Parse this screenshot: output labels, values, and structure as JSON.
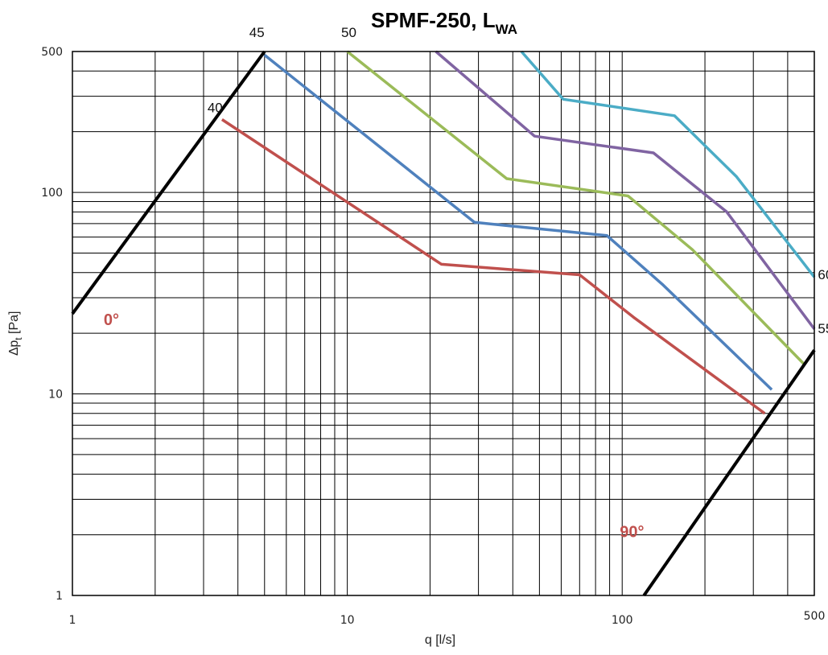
{
  "chart_data": {
    "type": "line",
    "title": "SPMF-250, L",
    "title_subscript": "WA",
    "xlabel": "q [l/s]",
    "ylabel_prefix": "∆p",
    "ylabel_subscript": "t",
    "ylabel_suffix": " [Pa]",
    "x_scale": "log",
    "y_scale": "log",
    "xlim": [
      1,
      500
    ],
    "ylim": [
      1,
      500
    ],
    "x_ticks": [
      {
        "value": 1,
        "label": "1"
      },
      {
        "value": 10,
        "label": "10"
      },
      {
        "value": 100,
        "label": "100"
      },
      {
        "value": 500,
        "label": "500"
      }
    ],
    "y_ticks": [
      {
        "value": 1,
        "label": "1"
      },
      {
        "value": 10,
        "label": "10"
      },
      {
        "value": 100,
        "label": "100"
      },
      {
        "value": 500,
        "label": "500"
      }
    ],
    "grid": true,
    "series": [
      {
        "name": "40",
        "color": "#C0504D",
        "points": [
          [
            3.5,
            230
          ],
          [
            22,
            44
          ],
          [
            70,
            39
          ],
          [
            110,
            24
          ],
          [
            330,
            8
          ]
        ]
      },
      {
        "name": "45",
        "color": "#4F81BD",
        "points": [
          [
            5,
            480
          ],
          [
            29,
            71
          ],
          [
            88,
            61
          ],
          [
            140,
            35
          ],
          [
            350,
            10.5
          ]
        ]
      },
      {
        "name": "50",
        "color": "#9BBB59",
        "points": [
          [
            10,
            500
          ],
          [
            38,
            117
          ],
          [
            105,
            96
          ],
          [
            180,
            52
          ],
          [
            460,
            14
          ]
        ]
      },
      {
        "name": "55",
        "color": "#8064A2",
        "points": [
          [
            21,
            500
          ],
          [
            48,
            190
          ],
          [
            130,
            157
          ],
          [
            240,
            80
          ],
          [
            500,
            21
          ]
        ]
      },
      {
        "name": "60",
        "color": "#4BACC6",
        "points": [
          [
            43,
            500
          ],
          [
            61,
            290
          ],
          [
            155,
            240
          ],
          [
            260,
            120
          ],
          [
            500,
            38
          ]
        ]
      },
      {
        "name": "0°",
        "color": "#000000",
        "points": [
          [
            1,
            25
          ],
          [
            5,
            500
          ]
        ]
      },
      {
        "name": "90°",
        "color": "#000000",
        "points": [
          [
            120,
            1
          ],
          [
            500,
            16.5
          ]
        ]
      }
    ],
    "annotations": [
      {
        "text": "40",
        "x": 3.1,
        "y": 250,
        "kind": "curve"
      },
      {
        "text": "45",
        "x": 4.4,
        "y": 590,
        "kind": "curve"
      },
      {
        "text": "50",
        "x": 9.5,
        "y": 590,
        "kind": "curve"
      },
      {
        "text": "55",
        "x": 515,
        "y": 20,
        "kind": "curve"
      },
      {
        "text": "60",
        "x": 515,
        "y": 37,
        "kind": "curve"
      },
      {
        "text": "0°",
        "x": 1.3,
        "y": 22,
        "kind": "angle",
        "color": "#C0504D"
      },
      {
        "text": "90°",
        "x": 98,
        "y": 1.95,
        "kind": "angle",
        "color": "#C0504D"
      }
    ]
  }
}
